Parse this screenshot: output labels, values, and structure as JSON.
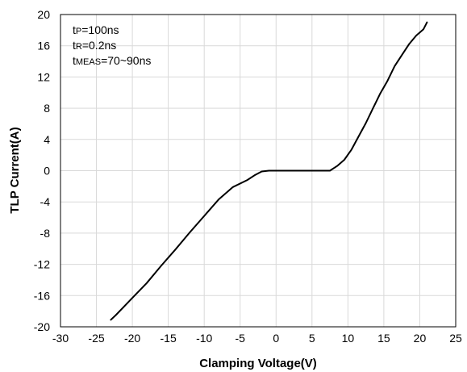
{
  "chart_data": {
    "type": "line",
    "title": "",
    "xlabel": "Clamping Voltage(V)",
    "ylabel": "TLP Current(A)",
    "xlim": [
      -30,
      25
    ],
    "ylim": [
      -20,
      20
    ],
    "x_ticks": [
      -30,
      -25,
      -20,
      -15,
      -10,
      -5,
      0,
      5,
      10,
      15,
      20,
      25
    ],
    "y_ticks": [
      -20,
      -16,
      -12,
      -8,
      -4,
      0,
      4,
      8,
      12,
      16,
      20
    ],
    "grid": true,
    "legend": "none",
    "annotations": [
      {
        "main": "t",
        "sub": "P",
        "rest": "=100ns"
      },
      {
        "main": "t",
        "sub": "R",
        "rest": "=0.2ns"
      },
      {
        "main": "t",
        "sub": "MEAS",
        "rest": "=70~90ns"
      }
    ],
    "series": [
      {
        "line_color": "#000000",
        "x": [
          -23.0,
          -22.3,
          -20.0,
          -18.0,
          -16.0,
          -14.0,
          -12.0,
          -10.0,
          -8.0,
          -6.0,
          -4.0,
          -3.0,
          -2.0,
          -1.0,
          0.0,
          2.0,
          4.0,
          6.0,
          7.5,
          8.5,
          9.5,
          10.5,
          11.5,
          12.5,
          13.5,
          14.5,
          15.5,
          16.5,
          17.5,
          18.5,
          19.5,
          20.5,
          21.0
        ],
        "y": [
          -19.1,
          -18.5,
          -16.3,
          -14.4,
          -12.2,
          -10.1,
          -7.9,
          -5.8,
          -3.7,
          -2.1,
          -1.2,
          -0.6,
          -0.1,
          0.0,
          0.0,
          0.0,
          0.0,
          0.0,
          0.0,
          0.6,
          1.4,
          2.7,
          4.4,
          6.1,
          8.0,
          9.9,
          11.5,
          13.4,
          14.8,
          16.2,
          17.3,
          18.1,
          19.0
        ]
      }
    ]
  }
}
